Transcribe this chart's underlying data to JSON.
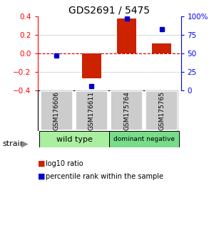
{
  "title": "GDS2691 / 5475",
  "samples": [
    "GSM176606",
    "GSM176611",
    "GSM175764",
    "GSM175765"
  ],
  "log10_ratio": [
    0.0,
    -0.27,
    0.38,
    0.11
  ],
  "percentile_rank": [
    47,
    5,
    97,
    83
  ],
  "bar_color": "#cc2200",
  "dot_color": "#0000cc",
  "ylim": [
    -0.4,
    0.4
  ],
  "yticks_left": [
    -0.4,
    -0.2,
    0.0,
    0.2,
    0.4
  ],
  "yticks_right": [
    0,
    25,
    50,
    75,
    100
  ],
  "group_row_color": "#cccccc",
  "wild_type_color": "#aaeea0",
  "dominant_negative_color": "#77dd88",
  "legend_items": [
    {
      "color": "#cc2200",
      "label": "log10 ratio"
    },
    {
      "color": "#0000cc",
      "label": "percentile rank within the sample"
    }
  ],
  "zero_line_color": "#cc0000",
  "dotted_line_color": "#888888",
  "title_fontsize": 10
}
